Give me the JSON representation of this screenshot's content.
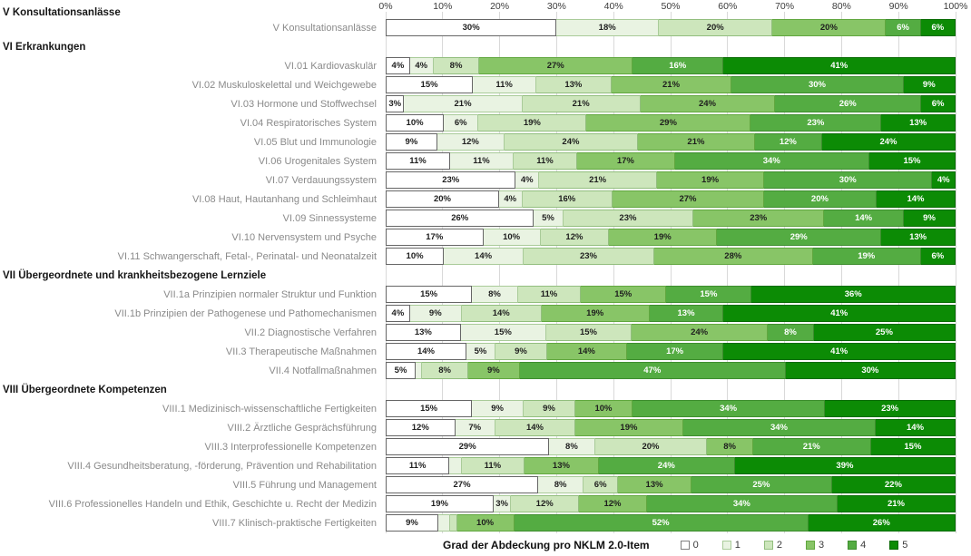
{
  "chart_data": {
    "type": "bar",
    "orientation": "horizontal",
    "stacked": true,
    "unit": "%",
    "xlim": [
      0,
      100
    ],
    "grid": true,
    "x_ticks": [
      "0%",
      "10%",
      "20%",
      "30%",
      "40%",
      "50%",
      "60%",
      "70%",
      "80%",
      "90%",
      "100%"
    ],
    "caption": "Grad der Abdeckung pro NKLM 2.0-Item",
    "legend_position": "bottom",
    "min_label_value": 3,
    "levels": [
      {
        "name": "0",
        "fill": "#FFFFFF",
        "border": "#666666",
        "text": "#1e1e1e"
      },
      {
        "name": "1",
        "fill": "#E9F3E2",
        "border": "#A9CB99",
        "text": "#1e1e1e"
      },
      {
        "name": "2",
        "fill": "#CDE6BC",
        "border": "#92BE7E",
        "text": "#1e1e1e"
      },
      {
        "name": "3",
        "fill": "#88C567",
        "border": "#61A73F",
        "text": "#1e1e1e"
      },
      {
        "name": "4",
        "fill": "#54AC42",
        "border": "#3D8D2E",
        "text": "#FFFFFF"
      },
      {
        "name": "5",
        "fill": "#0C8B05",
        "border": "#096B04",
        "text": "#FFFFFF"
      }
    ],
    "sections": [
      {
        "label": "V Konsultationsanlässe",
        "before": 0,
        "in_axis_row": true
      },
      {
        "label": "VI Erkrankungen",
        "before": 1
      },
      {
        "label": "VII Übergeordnete und krankheitsbezogene Lernziele",
        "before": 12
      },
      {
        "label": "VIII Übergeordnete Kompetenzen",
        "before": 17
      }
    ],
    "categories": [
      "V Konsultationsanlässe",
      "VI.01 Kardiovaskulär",
      "VI.02 Muskuloskelettal und Weichgewebe",
      "VI.03 Hormone und Stoffwechsel",
      "VI.04 Respiratorisches System",
      "VI.05 Blut und Immunologie",
      "VI.06 Urogenitales System",
      "VI.07 Verdauungssystem",
      "VI.08 Haut, Hautanhang und Schleimhaut",
      "VI.09 Sinnessysteme",
      "VI.10 Nervensystem und Psyche",
      "VI.11 Schwangerschaft, Fetal-, Perinatal- und Neonatalzeit",
      "VII.1a Prinzipien normaler Struktur und Funktion",
      "VII.1b Prinzipien der Pathogenese und Pathomechanismen",
      "VII.2 Diagnostische Verfahren",
      "VII.3 Therapeutische Maßnahmen",
      "VII.4 Notfallmaßnahmen",
      "VIII.1  Medizinisch-wissenschaftliche Fertigkeiten",
      "VIII.2 Ärztliche Gesprächsführung",
      "VIII.3 Interprofessionelle Kompetenzen",
      "VIII.4 Gesundheitsberatung, -förderung, Prävention und Rehabilitation",
      "VIII.5 Führung und Management",
      "VIII.6 Professionelles Handeln und Ethik, Geschichte u. Recht der Medizin",
      "VIII.7 Klinisch-praktische Fertigkeiten"
    ],
    "series": [
      {
        "name": "0",
        "values": [
          30,
          4,
          15,
          3,
          10,
          9,
          11,
          23,
          20,
          26,
          17,
          10,
          15,
          4,
          13,
          14,
          5,
          15,
          12,
          29,
          11,
          27,
          19,
          9
        ]
      },
      {
        "name": "1",
        "values": [
          18,
          4,
          11,
          21,
          6,
          12,
          11,
          4,
          4,
          5,
          10,
          14,
          8,
          9,
          15,
          5,
          1,
          9,
          7,
          8,
          2,
          8,
          3,
          2
        ]
      },
      {
        "name": "2",
        "values": [
          20,
          8,
          13,
          21,
          19,
          24,
          11,
          21,
          16,
          23,
          12,
          23,
          11,
          14,
          15,
          9,
          8,
          9,
          14,
          20,
          11,
          6,
          12,
          1
        ]
      },
      {
        "name": "3",
        "values": [
          20,
          27,
          21,
          24,
          29,
          21,
          17,
          19,
          27,
          23,
          19,
          28,
          15,
          19,
          24,
          14,
          9,
          10,
          19,
          8,
          13,
          13,
          12,
          10
        ]
      },
      {
        "name": "4",
        "values": [
          6,
          16,
          30,
          26,
          23,
          12,
          34,
          30,
          20,
          14,
          29,
          19,
          15,
          13,
          8,
          17,
          47,
          34,
          34,
          21,
          24,
          25,
          34,
          52
        ]
      },
      {
        "name": "5",
        "values": [
          6,
          41,
          9,
          6,
          13,
          24,
          15,
          4,
          14,
          9,
          13,
          6,
          36,
          41,
          25,
          41,
          30,
          23,
          14,
          15,
          39,
          22,
          21,
          26
        ]
      }
    ]
  }
}
